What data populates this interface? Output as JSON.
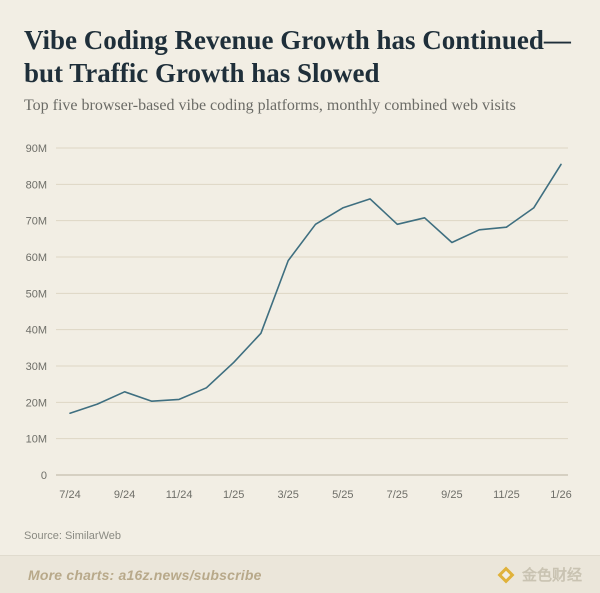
{
  "header": {
    "title_line1": "Vibe Coding Revenue Growth has Continued—",
    "title_line2": "but Traffic Growth has Slowed",
    "subtitle": "Top five browser-based vibe coding platforms, monthly combined web visits"
  },
  "colors": {
    "background": "#f2eee4",
    "line": "#3f6f80",
    "grid": "#ddd6c4",
    "tick_text": "#6e6e68",
    "title": "#1f2f3a"
  },
  "chart_data": {
    "type": "line",
    "title": "Vibe Coding Revenue Growth has Continued—but Traffic Growth has Slowed",
    "xlabel": "",
    "ylabel": "",
    "ylim": [
      0,
      90
    ],
    "y_ticks": [
      0,
      10,
      20,
      30,
      40,
      50,
      60,
      70,
      80,
      90
    ],
    "y_tick_labels": [
      "0",
      "10M",
      "20M",
      "30M",
      "40M",
      "50M",
      "60M",
      "70M",
      "80M",
      "90M"
    ],
    "x_tick_labels": [
      "7/24",
      "9/24",
      "11/24",
      "1/25",
      "3/25",
      "5/25",
      "7/25",
      "9/25",
      "11/25",
      "1/26"
    ],
    "grid": true,
    "series": [
      {
        "name": "Monthly combined web visits",
        "unit": "M",
        "x": [
          "7/24",
          "8/24",
          "9/24",
          "10/24",
          "11/24",
          "12/24",
          "1/25",
          "2/25",
          "3/25",
          "4/25",
          "5/25",
          "6/25",
          "7/25",
          "8/25",
          "9/25",
          "10/25",
          "11/25",
          "12/25",
          "1/26"
        ],
        "values": [
          17.0,
          19.5,
          22.9,
          20.3,
          20.8,
          24.0,
          31.0,
          39.0,
          59.0,
          69.0,
          73.5,
          76.0,
          69.0,
          70.8,
          64.0,
          67.5,
          68.2,
          73.5,
          85.5
        ]
      }
    ]
  },
  "source": "Source: SimilarWeb",
  "footer": {
    "more_charts": "More charts: a16z.news/subscribe",
    "watermark_icon": "diamond-logo-icon",
    "watermark_text": "金色财经"
  }
}
